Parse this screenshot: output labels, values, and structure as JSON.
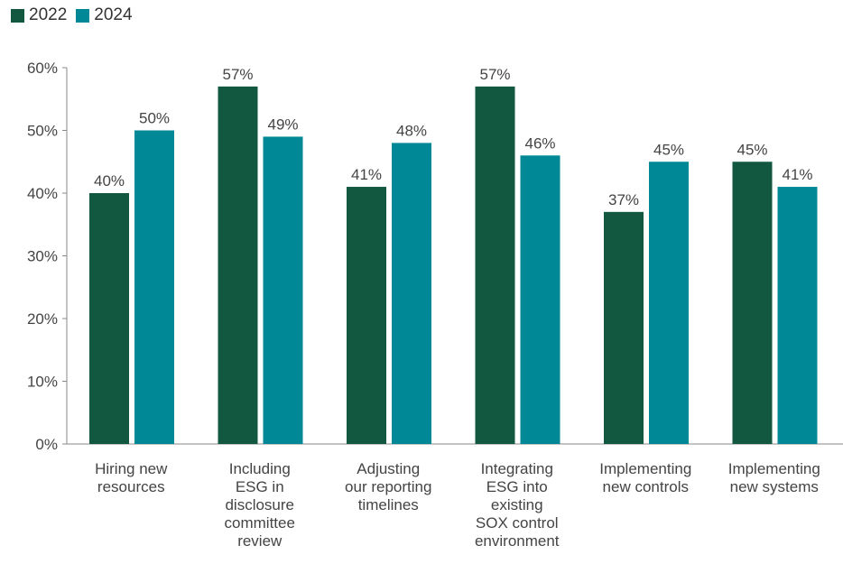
{
  "chart_data": {
    "type": "bar",
    "categories": [
      [
        "Hiring new",
        "resources"
      ],
      [
        "Including",
        "ESG in",
        "disclosure",
        "committee",
        "review"
      ],
      [
        "Adjusting",
        "our reporting",
        "timelines"
      ],
      [
        "Integrating",
        "ESG into",
        "existing",
        "SOX control",
        "environment"
      ],
      [
        "Implementing",
        "new controls"
      ],
      [
        "Implementing",
        "new systems"
      ]
    ],
    "series": [
      {
        "name": "2022",
        "color": "#12573f",
        "values": [
          40,
          57,
          41,
          57,
          37,
          45
        ],
        "labels": [
          "40%",
          "57%",
          "41%",
          "57%",
          "37%",
          "45%"
        ]
      },
      {
        "name": "2024",
        "color": "#008896",
        "values": [
          50,
          49,
          48,
          46,
          45,
          41
        ],
        "labels": [
          "50%",
          "49%",
          "48%",
          "46%",
          "45%",
          "41%"
        ]
      }
    ],
    "ylim": [
      0,
      60
    ],
    "yticks": [
      0,
      10,
      20,
      30,
      40,
      50,
      60
    ],
    "ytick_labels": [
      "0%",
      "10%",
      "20%",
      "30%",
      "40%",
      "50%",
      "60%"
    ],
    "grid": false,
    "legend_position": "top-left",
    "title": "",
    "xlabel": "",
    "ylabel": ""
  }
}
